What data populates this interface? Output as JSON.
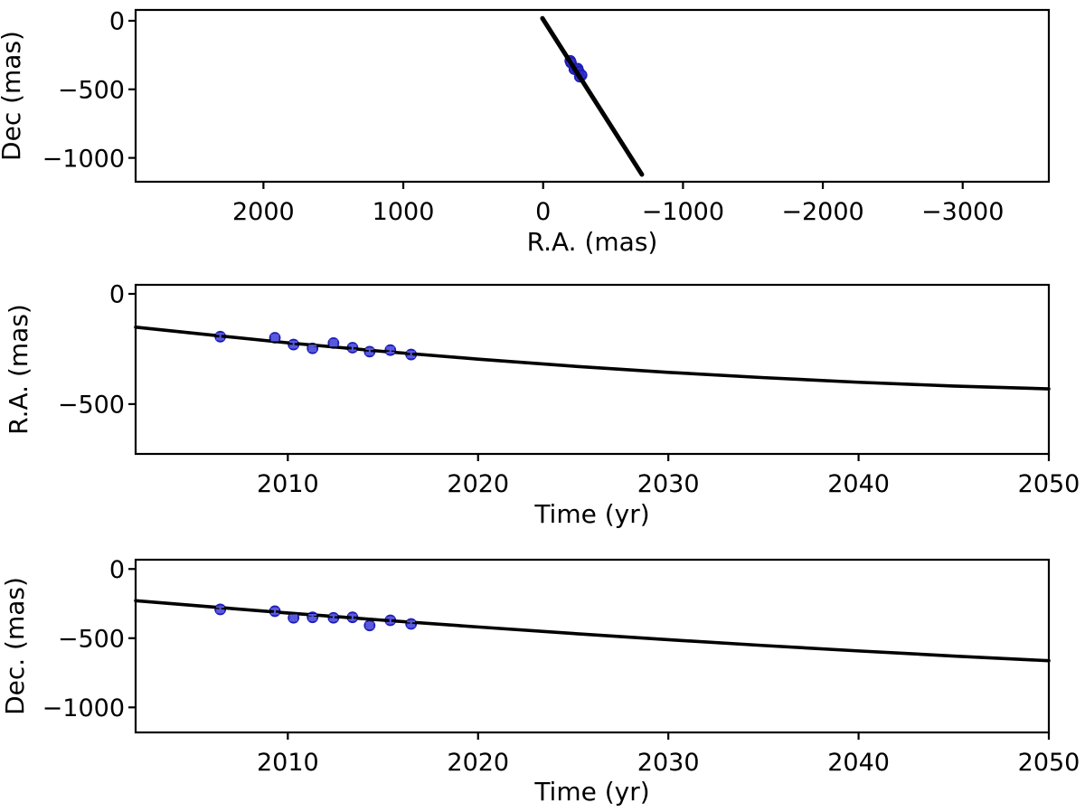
{
  "figure": {
    "background": "#ffffff",
    "text_color": "#000000",
    "model_line_color": "#000000",
    "marker_fill": "#2d2dd7",
    "marker_fill_opacity": 0.8,
    "marker_edge_color": "#1e1eb4",
    "errorbar_color": "#5a5ae0"
  },
  "chart_data": [
    {
      "id": "sky-orbit",
      "type": "scatter",
      "title": "",
      "xlabel": "R.A. (mas)",
      "ylabel": "Dec (mas)",
      "xlim": [
        2914,
        -3616
      ],
      "ylim": [
        79,
        -1174
      ],
      "x_axis_inverted": true,
      "grid": false,
      "legend": null,
      "xticks": [
        2000,
        1000,
        0,
        -1000,
        -2000,
        -3000
      ],
      "xtick_labels": [
        "2000",
        "1000",
        "0",
        "−1000",
        "−2000",
        "−3000"
      ],
      "yticks": [
        0,
        -500,
        -1000
      ],
      "ytick_labels": [
        "0",
        "−500",
        "−1000"
      ],
      "series": [
        {
          "name": "astrometry-points",
          "type": "scatter",
          "points": [
            [
              -194,
              -292
            ],
            [
              -199,
              -305
            ],
            [
              -230,
              -353
            ],
            [
              -247,
              -349
            ],
            [
              -223,
              -353
            ],
            [
              -244,
              -349
            ],
            [
              -262,
              -408
            ],
            [
              -255,
              -371
            ],
            [
              -275,
              -397
            ]
          ]
        },
        {
          "name": "orbit-model-line",
          "type": "line",
          "width": 5,
          "points": [
            [
              5,
              18
            ],
            [
              -706,
              -1121
            ]
          ]
        }
      ]
    },
    {
      "id": "ra-vs-time",
      "type": "scatter",
      "title": "",
      "xlabel": "Time (yr)",
      "ylabel": "R.A. (mas)",
      "xlim": [
        2002,
        2050
      ],
      "ylim": [
        41,
        -726
      ],
      "grid": false,
      "legend": null,
      "xticks": [
        2010,
        2020,
        2030,
        2040,
        2050
      ],
      "xtick_labels": [
        "2010",
        "2020",
        "2030",
        "2040",
        "2050"
      ],
      "yticks": [
        0,
        -500
      ],
      "ytick_labels": [
        "0",
        "−500"
      ],
      "series": [
        {
          "name": "ra-measurements",
          "type": "scatter",
          "yerr": 12,
          "points": [
            [
              2006.45,
              -194
            ],
            [
              2009.32,
              -199
            ],
            [
              2010.3,
              -230
            ],
            [
              2011.3,
              -247
            ],
            [
              2012.4,
              -223
            ],
            [
              2013.4,
              -244
            ],
            [
              2014.3,
              -262
            ],
            [
              2015.39,
              -255
            ],
            [
              2016.48,
              -275
            ]
          ]
        },
        {
          "name": "ra-model-curve",
          "type": "line",
          "width": 3.6,
          "points": [
            [
              2002,
              -151
            ],
            [
              2006,
              -187
            ],
            [
              2010,
              -222
            ],
            [
              2015,
              -261
            ],
            [
              2020,
              -296
            ],
            [
              2025,
              -328
            ],
            [
              2030,
              -356
            ],
            [
              2035,
              -380
            ],
            [
              2040,
              -401
            ],
            [
              2045,
              -418
            ],
            [
              2050,
              -431
            ]
          ]
        }
      ]
    },
    {
      "id": "dec-vs-time",
      "type": "scatter",
      "title": "",
      "xlabel": "Time (yr)",
      "ylabel": "Dec. (mas)",
      "xlim": [
        2002,
        2050
      ],
      "ylim": [
        67,
        -1181
      ],
      "grid": false,
      "legend": null,
      "xticks": [
        2010,
        2020,
        2030,
        2040,
        2050
      ],
      "xtick_labels": [
        "2010",
        "2020",
        "2030",
        "2040",
        "2050"
      ],
      "yticks": [
        0,
        -500,
        -1000
      ],
      "ytick_labels": [
        "0",
        "−500",
        "−1000"
      ],
      "series": [
        {
          "name": "dec-measurements",
          "type": "scatter",
          "yerr": 18,
          "points": [
            [
              2006.45,
              -292
            ],
            [
              2009.32,
              -305
            ],
            [
              2010.3,
              -353
            ],
            [
              2011.3,
              -349
            ],
            [
              2012.4,
              -353
            ],
            [
              2013.4,
              -349
            ],
            [
              2014.3,
              -408
            ],
            [
              2015.39,
              -371
            ],
            [
              2016.48,
              -397
            ]
          ]
        },
        {
          "name": "dec-model-curve",
          "type": "line",
          "width": 3.6,
          "points": [
            [
              2002,
              -229
            ],
            [
              2006,
              -274
            ],
            [
              2010,
              -318
            ],
            [
              2015,
              -370
            ],
            [
              2020,
              -419
            ],
            [
              2025,
              -466
            ],
            [
              2030,
              -511
            ],
            [
              2035,
              -553
            ],
            [
              2040,
              -592
            ],
            [
              2045,
              -629
            ],
            [
              2050,
              -663
            ]
          ]
        }
      ]
    }
  ]
}
